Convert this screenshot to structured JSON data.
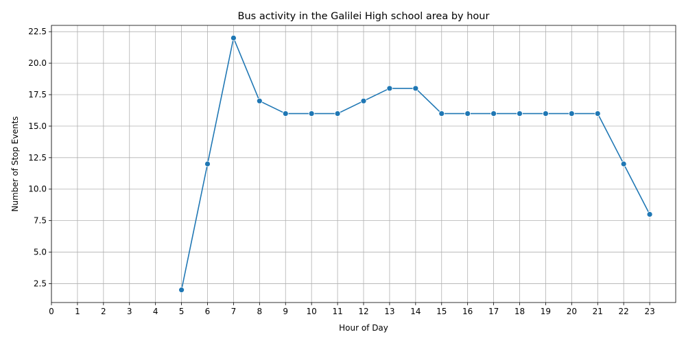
{
  "chart_data": {
    "type": "line",
    "title": "Bus activity in the Galilei High school area by hour",
    "xlabel": "Hour of Day",
    "ylabel": "Number of Stop Events",
    "xlim": [
      0,
      24
    ],
    "ylim": [
      1.0,
      23.0
    ],
    "x_ticks": [
      0,
      1,
      2,
      3,
      4,
      5,
      6,
      7,
      8,
      9,
      10,
      11,
      12,
      13,
      14,
      15,
      16,
      17,
      18,
      19,
      20,
      21,
      22,
      23
    ],
    "y_ticks": [
      2.5,
      5.0,
      7.5,
      10.0,
      12.5,
      15.0,
      17.5,
      20.0,
      22.5
    ],
    "y_tick_labels": [
      "2.5",
      "5.0",
      "7.5",
      "10.0",
      "12.5",
      "15.0",
      "17.5",
      "20.0",
      "22.5"
    ],
    "grid": true,
    "color": "#1f77b4",
    "series": [
      {
        "x": [
          5,
          6,
          7,
          8,
          9,
          10,
          11,
          12,
          13,
          14,
          15,
          16,
          17,
          18,
          19,
          20,
          21,
          22,
          23
        ],
        "values": [
          2,
          12,
          22,
          17,
          16,
          16,
          16,
          17,
          18,
          18,
          16,
          16,
          16,
          16,
          16,
          16,
          16,
          12,
          8
        ]
      }
    ]
  }
}
